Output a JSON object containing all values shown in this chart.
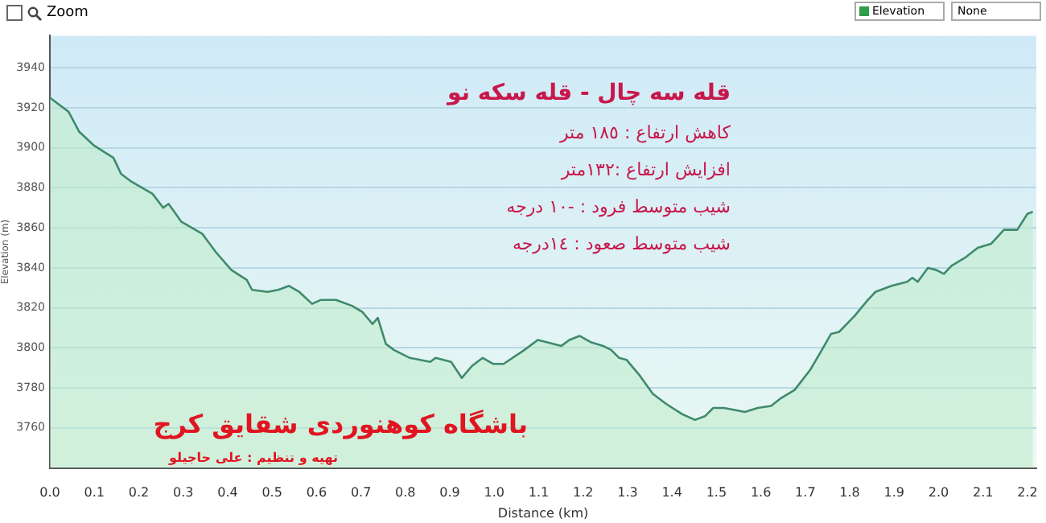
{
  "chart_data": {
    "type": "area",
    "title": "قله سه چال - قله سکه نو",
    "xlabel": "Distance (km)",
    "ylabel": "Elevation (m)",
    "annotations": [
      "کاهش ارتفاع : ١٨٥ متر",
      "افزایش ارتفاع :١٣٢متر",
      "شیب متوسط فرود : -١٠ درجه",
      "شیب متوسط صعود : ١٤درجه",
      "باشگاه کوهنوردی شقایق کرج",
      "تهیه و تنظیم : علی حاجیلو",
      "Zoom",
      "Elevation",
      "None"
    ],
    "series": [
      {
        "color": "#3f8a6c",
        "x": [
          0,
          0.042,
          0.066,
          0.1,
          0.143,
          0.16,
          0.184,
          0.231,
          0.255,
          0.267,
          0.296,
          0.343,
          0.373,
          0.408,
          0.443,
          0.455,
          0.49,
          0.514,
          0.538,
          0.561,
          0.59,
          0.61,
          0.644,
          0.68,
          0.703,
          0.726,
          0.738,
          0.756,
          0.774,
          0.81,
          0.856,
          0.868,
          0.903,
          0.927,
          0.95,
          0.974,
          0.998,
          1.021,
          1.068,
          1.098,
          1.116,
          1.151,
          1.169,
          1.192,
          1.216,
          1.245,
          1.263,
          1.281,
          1.298,
          1.328,
          1.357,
          1.387,
          1.422,
          1.452,
          1.475,
          1.493,
          1.517,
          1.564,
          1.593,
          1.623,
          1.646,
          1.676,
          1.711,
          1.74,
          1.758,
          1.776,
          1.811,
          1.841,
          1.858,
          1.894,
          1.929,
          1.941,
          1.953,
          1.976,
          1.994,
          2.012,
          2.029,
          2.059,
          2.088,
          2.118,
          2.147,
          2.177,
          2.2,
          2.212
        ],
        "values": [
          3925,
          3918,
          3908,
          3901,
          3895,
          3887,
          3883,
          3877,
          3870,
          3872,
          3863,
          3857,
          3848,
          3839,
          3834,
          3829,
          3828,
          3829,
          3831,
          3828,
          3822,
          3824,
          3824,
          3821,
          3818,
          3812,
          3815,
          3802,
          3799,
          3795,
          3793,
          3795,
          3793,
          3785,
          3791,
          3795,
          3792,
          3792,
          3799,
          3804,
          3803,
          3801,
          3804,
          3806,
          3803,
          3801,
          3799,
          3795,
          3794,
          3786,
          3777,
          3772,
          3767,
          3764,
          3766,
          3770,
          3770,
          3768,
          3770,
          3771,
          3775,
          3779,
          3789,
          3800,
          3807,
          3808,
          3816,
          3824,
          3828,
          3831,
          3833,
          3835,
          3833,
          3840,
          3839,
          3837,
          3841,
          3845,
          3850,
          3852,
          3859,
          3859,
          3867,
          3868
        ]
      }
    ],
    "xlim": [
      0,
      2.22
    ],
    "xticks": [
      {
        "value": 0,
        "label": "0.0"
      },
      {
        "value": 0.1,
        "label": "0.1"
      },
      {
        "value": 0.2,
        "label": "0.2"
      },
      {
        "value": 0.3,
        "label": "0.3"
      },
      {
        "value": 0.4,
        "label": "0.4"
      },
      {
        "value": 0.5,
        "label": "0.5"
      },
      {
        "value": 0.6,
        "label": "0.6"
      },
      {
        "value": 0.7,
        "label": "0.7"
      },
      {
        "value": 0.8,
        "label": "0.8"
      },
      {
        "value": 0.9,
        "label": "0.9"
      },
      {
        "value": 1,
        "label": "1.0"
      },
      {
        "value": 1.1,
        "label": "1.1"
      },
      {
        "value": 1.2,
        "label": "1.2"
      },
      {
        "value": 1.3,
        "label": "1.3"
      },
      {
        "value": 1.4,
        "label": "1.4"
      },
      {
        "value": 1.5,
        "label": "1.5"
      },
      {
        "value": 1.6,
        "label": "1.6"
      },
      {
        "value": 1.7,
        "label": "1.7"
      },
      {
        "value": 1.8,
        "label": "1.8"
      },
      {
        "value": 1.9,
        "label": "1.9"
      },
      {
        "value": 2,
        "label": "2.0"
      },
      {
        "value": 2.1,
        "label": "2.1"
      },
      {
        "value": 2.2,
        "label": "2.2"
      }
    ],
    "ylim": [
      3740,
      3956
    ],
    "yticks": [
      3760,
      3780,
      3800,
      3820,
      3840,
      3860,
      3880,
      3900,
      3920,
      3940
    ],
    "grid": "y",
    "legend": false
  }
}
